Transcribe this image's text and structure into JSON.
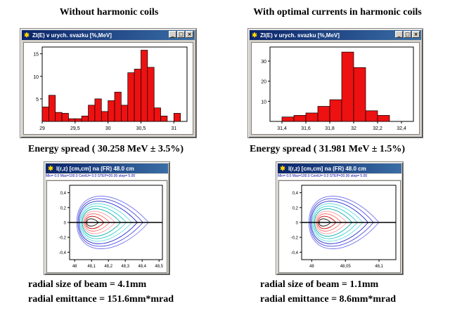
{
  "left": {
    "caption": "Without harmonic coils",
    "histogram_window": {
      "title": "ZI(E) v urych. svazku [%,MeV]",
      "chart_data": {
        "type": "bar",
        "x_ticks": [
          "29",
          "29,5",
          "30",
          "30,5",
          "31"
        ],
        "y_ticks": [
          "5",
          "10",
          "15"
        ],
        "xlim": [
          29,
          31.2
        ],
        "ylim": [
          0,
          16.5
        ],
        "bar_width": 0.1,
        "x": [
          29.05,
          29.15,
          29.25,
          29.35,
          29.45,
          29.55,
          29.65,
          29.75,
          29.85,
          29.95,
          30.05,
          30.15,
          30.25,
          30.35,
          30.45,
          30.55,
          30.65,
          30.75,
          30.85,
          31.05
        ],
        "values": [
          3.2,
          5.8,
          2.0,
          1.8,
          0.6,
          0.6,
          1.2,
          3.6,
          5.0,
          2.2,
          4.6,
          6.5,
          3.6,
          10.8,
          11.6,
          15.8,
          12.0,
          3.0,
          1.2,
          1.8
        ]
      }
    },
    "energy_spread": "Energy spread ( 30.258 MeV ± 3.5%)",
    "contour_window": {
      "title": "I(r,z) [cm,cm] na (FR) 48.0 cm",
      "status": "Min= 0.0 Max=100.0 CentU= 0.0 STEP=20.00 step= 5.00",
      "chart_data": {
        "type": "contour",
        "x_ticks": [
          "48",
          "48,1",
          "48,2",
          "48,3",
          "48,4",
          "48,5"
        ],
        "y_ticks": [
          "0,4",
          "0,2",
          "0",
          "-0,2",
          "-0,4"
        ],
        "xlim": [
          47.97,
          48.52
        ],
        "ylim": [
          -0.5,
          0.5
        ]
      }
    },
    "radial_size": "radial size of beam =  4.1mm",
    "radial_emittance": "radial emittance = 151.6mm*mrad"
  },
  "right": {
    "caption": "With optimal currents in harmonic coils",
    "histogram_window": {
      "title": "ZI(E) v urych. svazku [%,MeV]",
      "chart_data": {
        "type": "bar",
        "x_ticks": [
          "31,4",
          "31,6",
          "31,8",
          "32",
          "32,2",
          "32,4"
        ],
        "y_ticks": [
          "10",
          "20",
          "30"
        ],
        "xlim": [
          31.3,
          32.5
        ],
        "ylim": [
          0,
          37
        ],
        "bar_width": 0.1,
        "x": [
          31.45,
          31.55,
          31.65,
          31.75,
          31.85,
          31.95,
          32.05,
          32.15,
          32.25
        ],
        "values": [
          2.2,
          3.0,
          4.2,
          7.5,
          10.8,
          34.5,
          26.8,
          5.3,
          3.0
        ]
      }
    },
    "energy_spread": "Energy spread  ( 31.981 MeV ± 1.5%)",
    "contour_window": {
      "title": "I(r,z) [cm,cm] na (FR) 48.0 cm",
      "status": "Min= 0.0 Max=100.0 CentU= 0.0 STEP=20.00 step= 5.00",
      "chart_data": {
        "type": "contour",
        "x_ticks": [
          "48",
          "48,05",
          "48,1"
        ],
        "y_ticks": [
          "0,4",
          "0,2",
          "0",
          "-0,2",
          "-0,4"
        ],
        "xlim": [
          47.985,
          48.125
        ],
        "ylim": [
          -0.5,
          0.5
        ]
      }
    },
    "radial_size": "radial size of beam =  1.1mm",
    "radial_emittance": "radial emittance = 8.6mm*mrad"
  },
  "window_buttons": {
    "minimize": "_",
    "maximize": "□",
    "close": "×"
  },
  "contour_colors": [
    "#000000",
    "#cc0000",
    "#ff6666",
    "#ff9999",
    "#00aaaa",
    "#33cccc",
    "#66dddd",
    "#2222cc",
    "#4444dd",
    "#7777ee"
  ],
  "bar_color": "#ee1111"
}
